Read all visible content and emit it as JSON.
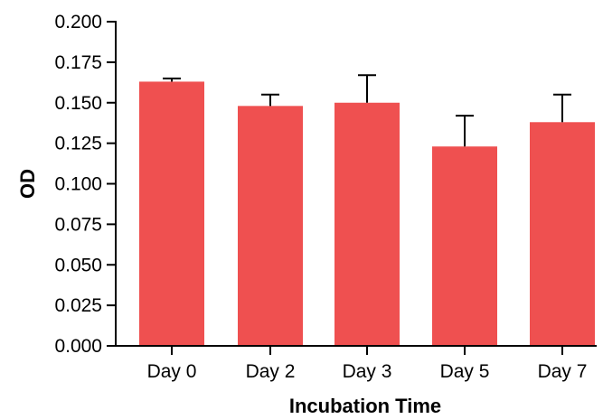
{
  "chart_data": {
    "type": "bar",
    "title": "",
    "xlabel": "Incubation Time",
    "ylabel": "OD",
    "categories": [
      "Day 0",
      "Day 2",
      "Day 3",
      "Day 5",
      "Day 7"
    ],
    "values": [
      0.163,
      0.148,
      0.15,
      0.123,
      0.138
    ],
    "error_upper": [
      0.002,
      0.007,
      0.017,
      0.019,
      0.017
    ],
    "ylim": [
      0,
      0.2
    ],
    "yticks": [
      "0.000",
      "0.025",
      "0.050",
      "0.075",
      "0.100",
      "0.125",
      "0.150",
      "0.175",
      "0.200"
    ],
    "grid": false,
    "legend": "none",
    "bar_color": "#ef5050",
    "axis_color": "#000000"
  }
}
